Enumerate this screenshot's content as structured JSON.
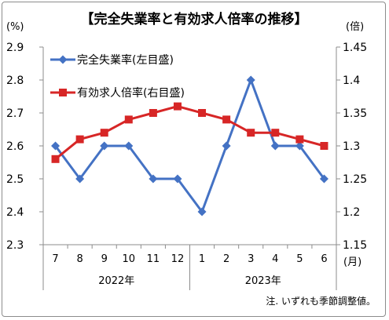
{
  "chart_data": {
    "type": "line",
    "title": "【完全失業率と有効求人倍率の推移】",
    "left_unit": "(%)",
    "right_unit": "(倍)",
    "x_unit": "(月)",
    "note": "注. いずれも季節調整値。",
    "categories": [
      "7",
      "8",
      "9",
      "10",
      "11",
      "12",
      "1",
      "2",
      "3",
      "4",
      "5",
      "6"
    ],
    "year_groups": [
      {
        "label": "2022年",
        "span": 6
      },
      {
        "label": "2023年",
        "span": 6
      }
    ],
    "y_left": {
      "min": 2.3,
      "max": 2.9,
      "step": 0.1,
      "ticks": [
        "2.3",
        "2.4",
        "2.5",
        "2.6",
        "2.7",
        "2.8",
        "2.9"
      ]
    },
    "y_right": {
      "min": 1.15,
      "max": 1.45,
      "step": 0.05,
      "ticks": [
        "1.15",
        "1.2",
        "1.25",
        "1.3",
        "1.35",
        "1.4",
        "1.45"
      ]
    },
    "grid": false,
    "legend_position": "top-left",
    "series": [
      {
        "name": "完全失業率(左目盛)",
        "axis": "left",
        "color": "#4472C4",
        "marker": "diamond",
        "values": [
          2.6,
          2.5,
          2.6,
          2.6,
          2.5,
          2.5,
          2.4,
          2.6,
          2.8,
          2.6,
          2.6,
          2.5
        ]
      },
      {
        "name": "有効求人倍率(右目盛)",
        "axis": "right",
        "color": "#D72626",
        "marker": "square",
        "values": [
          1.28,
          1.31,
          1.32,
          1.34,
          1.35,
          1.36,
          1.35,
          1.34,
          1.32,
          1.32,
          1.31,
          1.3
        ]
      }
    ]
  }
}
